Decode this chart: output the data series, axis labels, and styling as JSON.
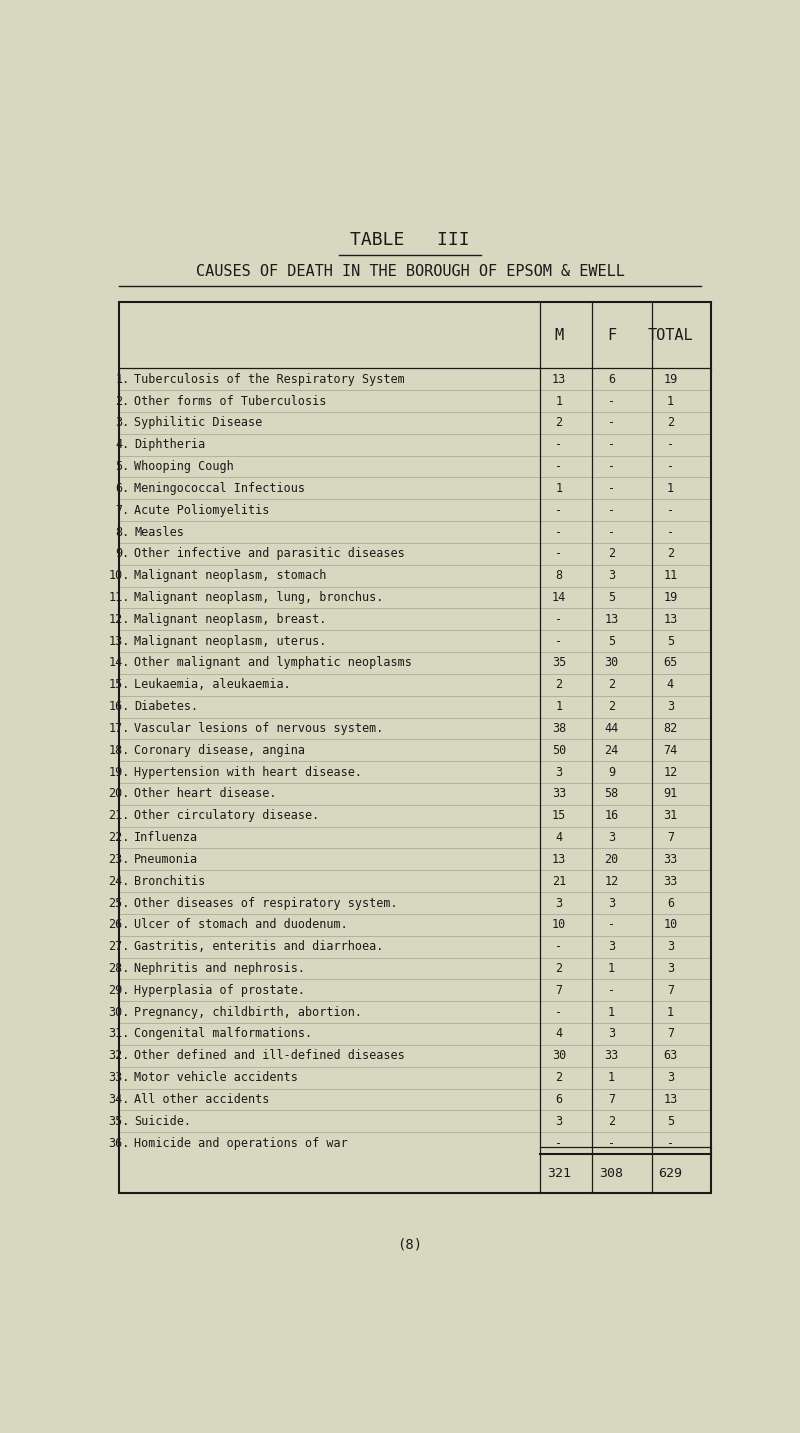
{
  "title1": "TABLE   III",
  "title2": "CAUSES OF DEATH IN THE BOROUGH OF EPSOM & EWELL",
  "col_headers": [
    "M",
    "F",
    "TOTAL"
  ],
  "rows": [
    {
      "num": "1.",
      "label": "Tuberculosis of the Respiratory System",
      "m": "13",
      "f": "6",
      "total": "19"
    },
    {
      "num": "2.",
      "label": "Other forms of Tuberculosis",
      "m": "1",
      "f": "-",
      "total": "1"
    },
    {
      "num": "3.",
      "label": "Syphilitic Disease",
      "m": "2",
      "f": "-",
      "total": "2"
    },
    {
      "num": "4.",
      "label": "Diphtheria",
      "m": "-",
      "f": "-",
      "total": "-"
    },
    {
      "num": "5.",
      "label": "Whooping Cough",
      "m": "-",
      "f": "-",
      "total": "-"
    },
    {
      "num": "6.",
      "label": "Meningococcal Infectious",
      "m": "1",
      "f": "-",
      "total": "1"
    },
    {
      "num": "7.",
      "label": "Acute Poliomyelitis",
      "m": "-",
      "f": "-",
      "total": "-"
    },
    {
      "num": "8.",
      "label": "Measles",
      "m": "-",
      "f": "-",
      "total": "-"
    },
    {
      "num": "9.",
      "label": "Other infective and parasitic diseases",
      "m": "-",
      "f": "2",
      "total": "2"
    },
    {
      "num": "10.",
      "label": "Malignant neoplasm, stomach",
      "m": "8",
      "f": "3",
      "total": "11"
    },
    {
      "num": "11.",
      "label": "Malignant neoplasm, lung, bronchus.",
      "m": "14",
      "f": "5",
      "total": "19"
    },
    {
      "num": "12.",
      "label": "Malignant neoplasm, breast.",
      "m": "-",
      "f": "13",
      "total": "13"
    },
    {
      "num": "13.",
      "label": "Malignant neoplasm, uterus.",
      "m": "-",
      "f": "5",
      "total": "5"
    },
    {
      "num": "14.",
      "label": "Other malignant and lymphatic neoplasms",
      "m": "35",
      "f": "30",
      "total": "65"
    },
    {
      "num": "15.",
      "label": "Leukaemia, aleukaemia.",
      "m": "2",
      "f": "2",
      "total": "4"
    },
    {
      "num": "16.",
      "label": "Diabetes.",
      "m": "1",
      "f": "2",
      "total": "3"
    },
    {
      "num": "17.",
      "label": "Vascular lesions of nervous system.",
      "m": "38",
      "f": "44",
      "total": "82"
    },
    {
      "num": "18.",
      "label": "Coronary disease, angina",
      "m": "50",
      "f": "24",
      "total": "74"
    },
    {
      "num": "19.",
      "label": "Hypertension with heart disease.",
      "m": "3",
      "f": "9",
      "total": "12"
    },
    {
      "num": "20.",
      "label": "Other heart disease.",
      "m": "33",
      "f": "58",
      "total": "91"
    },
    {
      "num": "21.",
      "label": "Other circulatory disease.",
      "m": "15",
      "f": "16",
      "total": "31"
    },
    {
      "num": "22.",
      "label": "Influenza",
      "m": "4",
      "f": "3",
      "total": "7"
    },
    {
      "num": "23.",
      "label": "Pneumonia",
      "m": "13",
      "f": "20",
      "total": "33"
    },
    {
      "num": "24.",
      "label": "Bronchitis",
      "m": "21",
      "f": "12",
      "total": "33"
    },
    {
      "num": "25.",
      "label": "Other diseases of respiratory system.",
      "m": "3",
      "f": "3",
      "total": "6"
    },
    {
      "num": "26.",
      "label": "Ulcer of stomach and duodenum.",
      "m": "10",
      "f": "-",
      "total": "10"
    },
    {
      "num": "27.",
      "label": "Gastritis, enteritis and diarrhoea.",
      "m": "-",
      "f": "3",
      "total": "3"
    },
    {
      "num": "28.",
      "label": "Nephritis and nephrosis.",
      "m": "2",
      "f": "1",
      "total": "3"
    },
    {
      "num": "29.",
      "label": "Hyperplasia of prostate.",
      "m": "7",
      "f": "-",
      "total": "7"
    },
    {
      "num": "30.",
      "label": "Pregnancy, childbirth, abortion.",
      "m": "-",
      "f": "1",
      "total": "1"
    },
    {
      "num": "31.",
      "label": "Congenital malformations.",
      "m": "4",
      "f": "3",
      "total": "7"
    },
    {
      "num": "32.",
      "label": "Other defined and ill-defined diseases",
      "m": "30",
      "f": "33",
      "total": "63"
    },
    {
      "num": "33.",
      "label": "Motor vehicle accidents",
      "m": "2",
      "f": "1",
      "total": "3"
    },
    {
      "num": "34.",
      "label": "All other accidents",
      "m": "6",
      "f": "7",
      "total": "13"
    },
    {
      "num": "35.",
      "label": "Suicide.",
      "m": "3",
      "f": "2",
      "total": "5"
    },
    {
      "num": "36.",
      "label": "Homicide and operations of war",
      "m": "-",
      "f": "-",
      "total": "-"
    }
  ],
  "totals": {
    "m": "321",
    "f": "308",
    "total": "629"
  },
  "footer": "(8)",
  "bg_color": "#d8d8c0",
  "text_color": "#1a1a1a",
  "font_family": "DejaVu Sans Mono",
  "table_font_size": 8.5,
  "header_font_size": 11,
  "title1_font_size": 13,
  "title2_font_size": 11
}
